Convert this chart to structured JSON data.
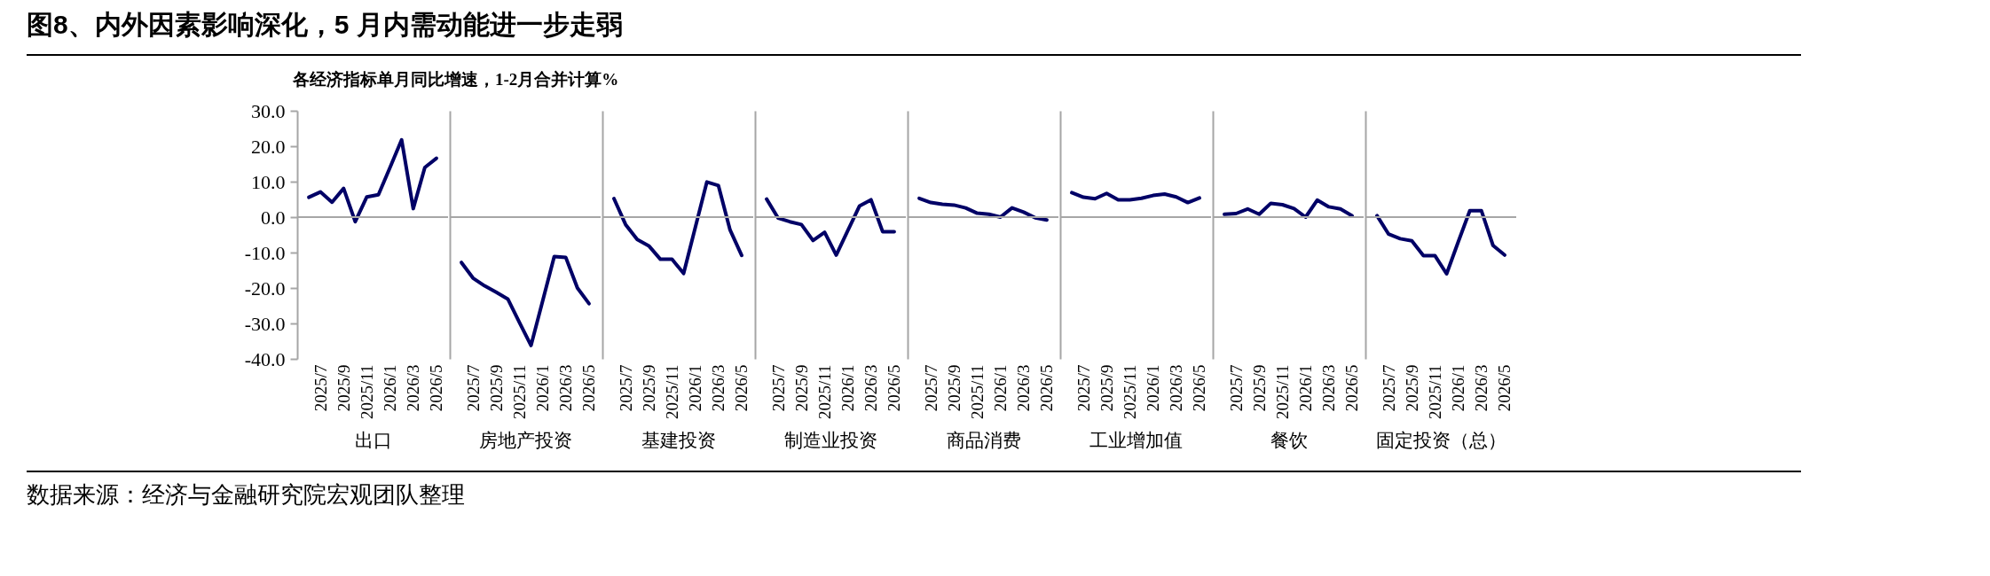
{
  "chart_data": [
    {
      "type": "line",
      "title": "图8、内外因素影响深化，5 月内需动能进一步走弱",
      "subtitle": "各经济指标单月同比增速，1-2月合并计算%",
      "annotations": [
        "数据来源：经济与金融研究院宏观团队整理"
      ],
      "xlabel": "出口",
      "categories": [
        null,
        "2025/7",
        null,
        "2025/9",
        null,
        "2025/11",
        null,
        "2026/1",
        null,
        "2026/3",
        null,
        "2026/5"
      ],
      "series": [
        {
          "color": "#000066",
          "values": [
            5.6,
            7.1,
            4.2,
            8.1,
            -1.3,
            5.7,
            6.3,
            14.0,
            21.8,
            2.4,
            14.0,
            16.6
          ]
        }
      ],
      "ylim": [
        -40,
        30
      ],
      "yticks": [
        {
          "value": -40,
          "label": "-40.0"
        },
        {
          "value": -30,
          "label": "-30.0"
        },
        {
          "value": -20,
          "label": "-20.0"
        },
        {
          "value": -10,
          "label": "-10.0"
        },
        {
          "value": 0,
          "label": "0.0"
        },
        {
          "value": 10,
          "label": "10.0"
        },
        {
          "value": 20,
          "label": "20.0"
        },
        {
          "value": 30,
          "label": "30.0"
        }
      ],
      "ref_lines": [
        {
          "axis": "y",
          "value": 0,
          "color": "#a6a6a6"
        }
      ]
    },
    {
      "type": "line",
      "xlabel": "房地产投资",
      "categories": [
        null,
        "2025/7",
        null,
        "2025/9",
        null,
        "2025/11",
        null,
        "2026/1",
        null,
        "2026/3",
        null,
        "2026/5"
      ],
      "series": [
        {
          "color": "#000066",
          "values": [
            -12.8,
            -17.2,
            -19.4,
            -21.2,
            -23.1,
            -29.7,
            -36.2,
            -23.7,
            -11.1,
            -11.4,
            -20.0,
            -24.4
          ]
        }
      ],
      "ylim": [
        -40,
        30
      ],
      "tick_labels": "x",
      "ref_lines": [
        {
          "axis": "y",
          "value": 0,
          "color": "#a6a6a6"
        }
      ]
    },
    {
      "type": "line",
      "xlabel": "基建投资",
      "categories": [
        null,
        "2025/7",
        null,
        "2025/9",
        null,
        "2025/11",
        null,
        "2026/1",
        null,
        "2026/3",
        null,
        "2026/5"
      ],
      "series": [
        {
          "color": "#000066",
          "values": [
            5.2,
            -2.1,
            -6.3,
            -8.1,
            -11.9,
            -11.9,
            -15.9,
            -3.0,
            9.9,
            8.9,
            -3.6,
            -10.8
          ]
        }
      ],
      "ylim": [
        -40,
        30
      ],
      "tick_labels": "x",
      "ref_lines": [
        {
          "axis": "y",
          "value": 0,
          "color": "#a6a6a6"
        }
      ]
    },
    {
      "type": "line",
      "xlabel": "制造业投资",
      "categories": [
        null,
        "2025/7",
        null,
        "2025/9",
        null,
        "2025/11",
        null,
        "2026/1",
        null,
        "2026/3",
        null,
        "2026/5"
      ],
      "series": [
        {
          "color": "#000066",
          "values": [
            5.1,
            -0.3,
            -1.3,
            -2.1,
            -6.6,
            -4.3,
            -10.7,
            -3.8,
            3.1,
            4.9,
            -4.1,
            -4.1
          ]
        }
      ],
      "ylim": [
        -40,
        30
      ],
      "tick_labels": "x",
      "ref_lines": [
        {
          "axis": "y",
          "value": 0,
          "color": "#a6a6a6"
        }
      ]
    },
    {
      "type": "line",
      "xlabel": "商品消费",
      "categories": [
        null,
        "2025/7",
        null,
        "2025/9",
        null,
        "2025/11",
        null,
        "2026/1",
        null,
        "2026/3",
        null,
        "2026/5"
      ],
      "series": [
        {
          "color": "#000066",
          "values": [
            5.3,
            4.1,
            3.6,
            3.4,
            2.6,
            1.1,
            0.8,
            0.0,
            2.6,
            1.4,
            -0.2,
            -0.8
          ]
        }
      ],
      "ylim": [
        -40,
        30
      ],
      "tick_labels": "x",
      "ref_lines": [
        {
          "axis": "y",
          "value": 0,
          "color": "#a6a6a6"
        }
      ]
    },
    {
      "type": "line",
      "xlabel": "工业增加值",
      "categories": [
        null,
        "2025/7",
        null,
        "2025/9",
        null,
        "2025/11",
        null,
        "2026/1",
        null,
        "2026/3",
        null,
        "2026/5"
      ],
      "series": [
        {
          "color": "#000066",
          "values": [
            6.9,
            5.6,
            5.2,
            6.7,
            4.9,
            4.9,
            5.3,
            6.1,
            6.5,
            5.7,
            4.1,
            5.4
          ]
        }
      ],
      "ylim": [
        -40,
        30
      ],
      "tick_labels": "x",
      "ref_lines": [
        {
          "axis": "y",
          "value": 0,
          "color": "#a6a6a6"
        }
      ]
    },
    {
      "type": "line",
      "xlabel": "餐饮",
      "categories": [
        null,
        "2025/7",
        null,
        "2025/9",
        null,
        "2025/11",
        null,
        "2026/1",
        null,
        "2026/3",
        null,
        "2026/5"
      ],
      "series": [
        {
          "color": "#000066",
          "values": [
            0.8,
            1.0,
            2.3,
            0.8,
            3.9,
            3.5,
            2.4,
            0.0,
            4.8,
            2.9,
            2.3,
            0.4
          ]
        }
      ],
      "ylim": [
        -40,
        30
      ],
      "tick_labels": "x",
      "ref_lines": [
        {
          "axis": "y",
          "value": 0,
          "color": "#a6a6a6"
        }
      ]
    },
    {
      "type": "line",
      "xlabel": "固定投资（总）",
      "categories": [
        null,
        "2025/7",
        null,
        "2025/9",
        null,
        "2025/11",
        null,
        "2026/1",
        null,
        "2026/3",
        null,
        "2026/5"
      ],
      "series": [
        {
          "color": "#000066",
          "values": [
            0.4,
            -4.8,
            -6.1,
            -6.7,
            -10.9,
            -10.9,
            -16.0,
            -7.0,
            1.8,
            1.8,
            -8.0,
            -10.7
          ]
        }
      ],
      "ylim": [
        -40,
        30
      ],
      "tick_labels": "x",
      "ref_lines": [
        {
          "axis": "y",
          "value": 0,
          "color": "#a6a6a6"
        }
      ]
    }
  ]
}
